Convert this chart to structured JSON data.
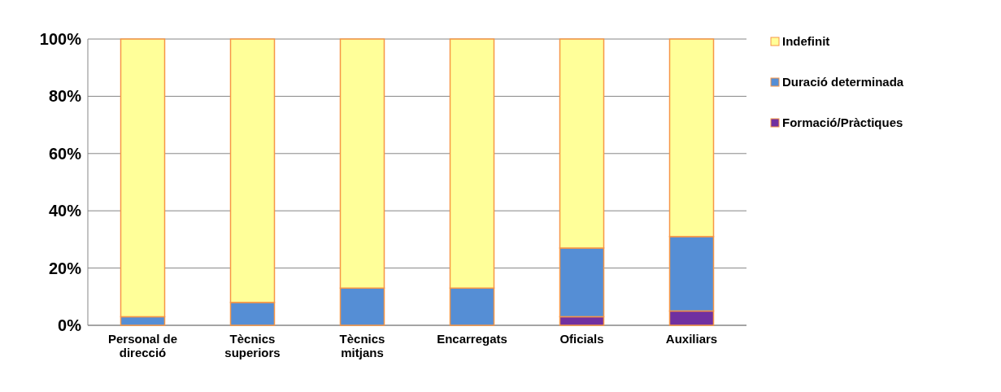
{
  "chart_data": {
    "type": "bar",
    "stacked": true,
    "categories": [
      "Personal de direcció",
      "Tècnics superiors",
      "Tècnics mitjans",
      "Encarregats",
      "Oficials",
      "Auxiliars"
    ],
    "series": [
      {
        "name": "Formació/Pràctiques",
        "color": "#7030a0",
        "values": [
          0,
          0,
          0,
          0,
          3,
          5
        ]
      },
      {
        "name": "Duració determinada",
        "color": "#558ed5",
        "values": [
          3,
          8,
          13,
          13,
          24,
          26
        ]
      },
      {
        "name": "Indefinit",
        "color": "#ffff99",
        "values": [
          97,
          92,
          87,
          87,
          73,
          69
        ]
      }
    ],
    "ylim": [
      0,
      100
    ],
    "yticks": [
      {
        "value": 0,
        "label": "0%"
      },
      {
        "value": 20,
        "label": "20%"
      },
      {
        "value": 40,
        "label": "40%"
      },
      {
        "value": 60,
        "label": "60%"
      },
      {
        "value": 80,
        "label": "80%"
      },
      {
        "value": 100,
        "label": "100%"
      }
    ],
    "grid": "y",
    "legend": "right"
  }
}
